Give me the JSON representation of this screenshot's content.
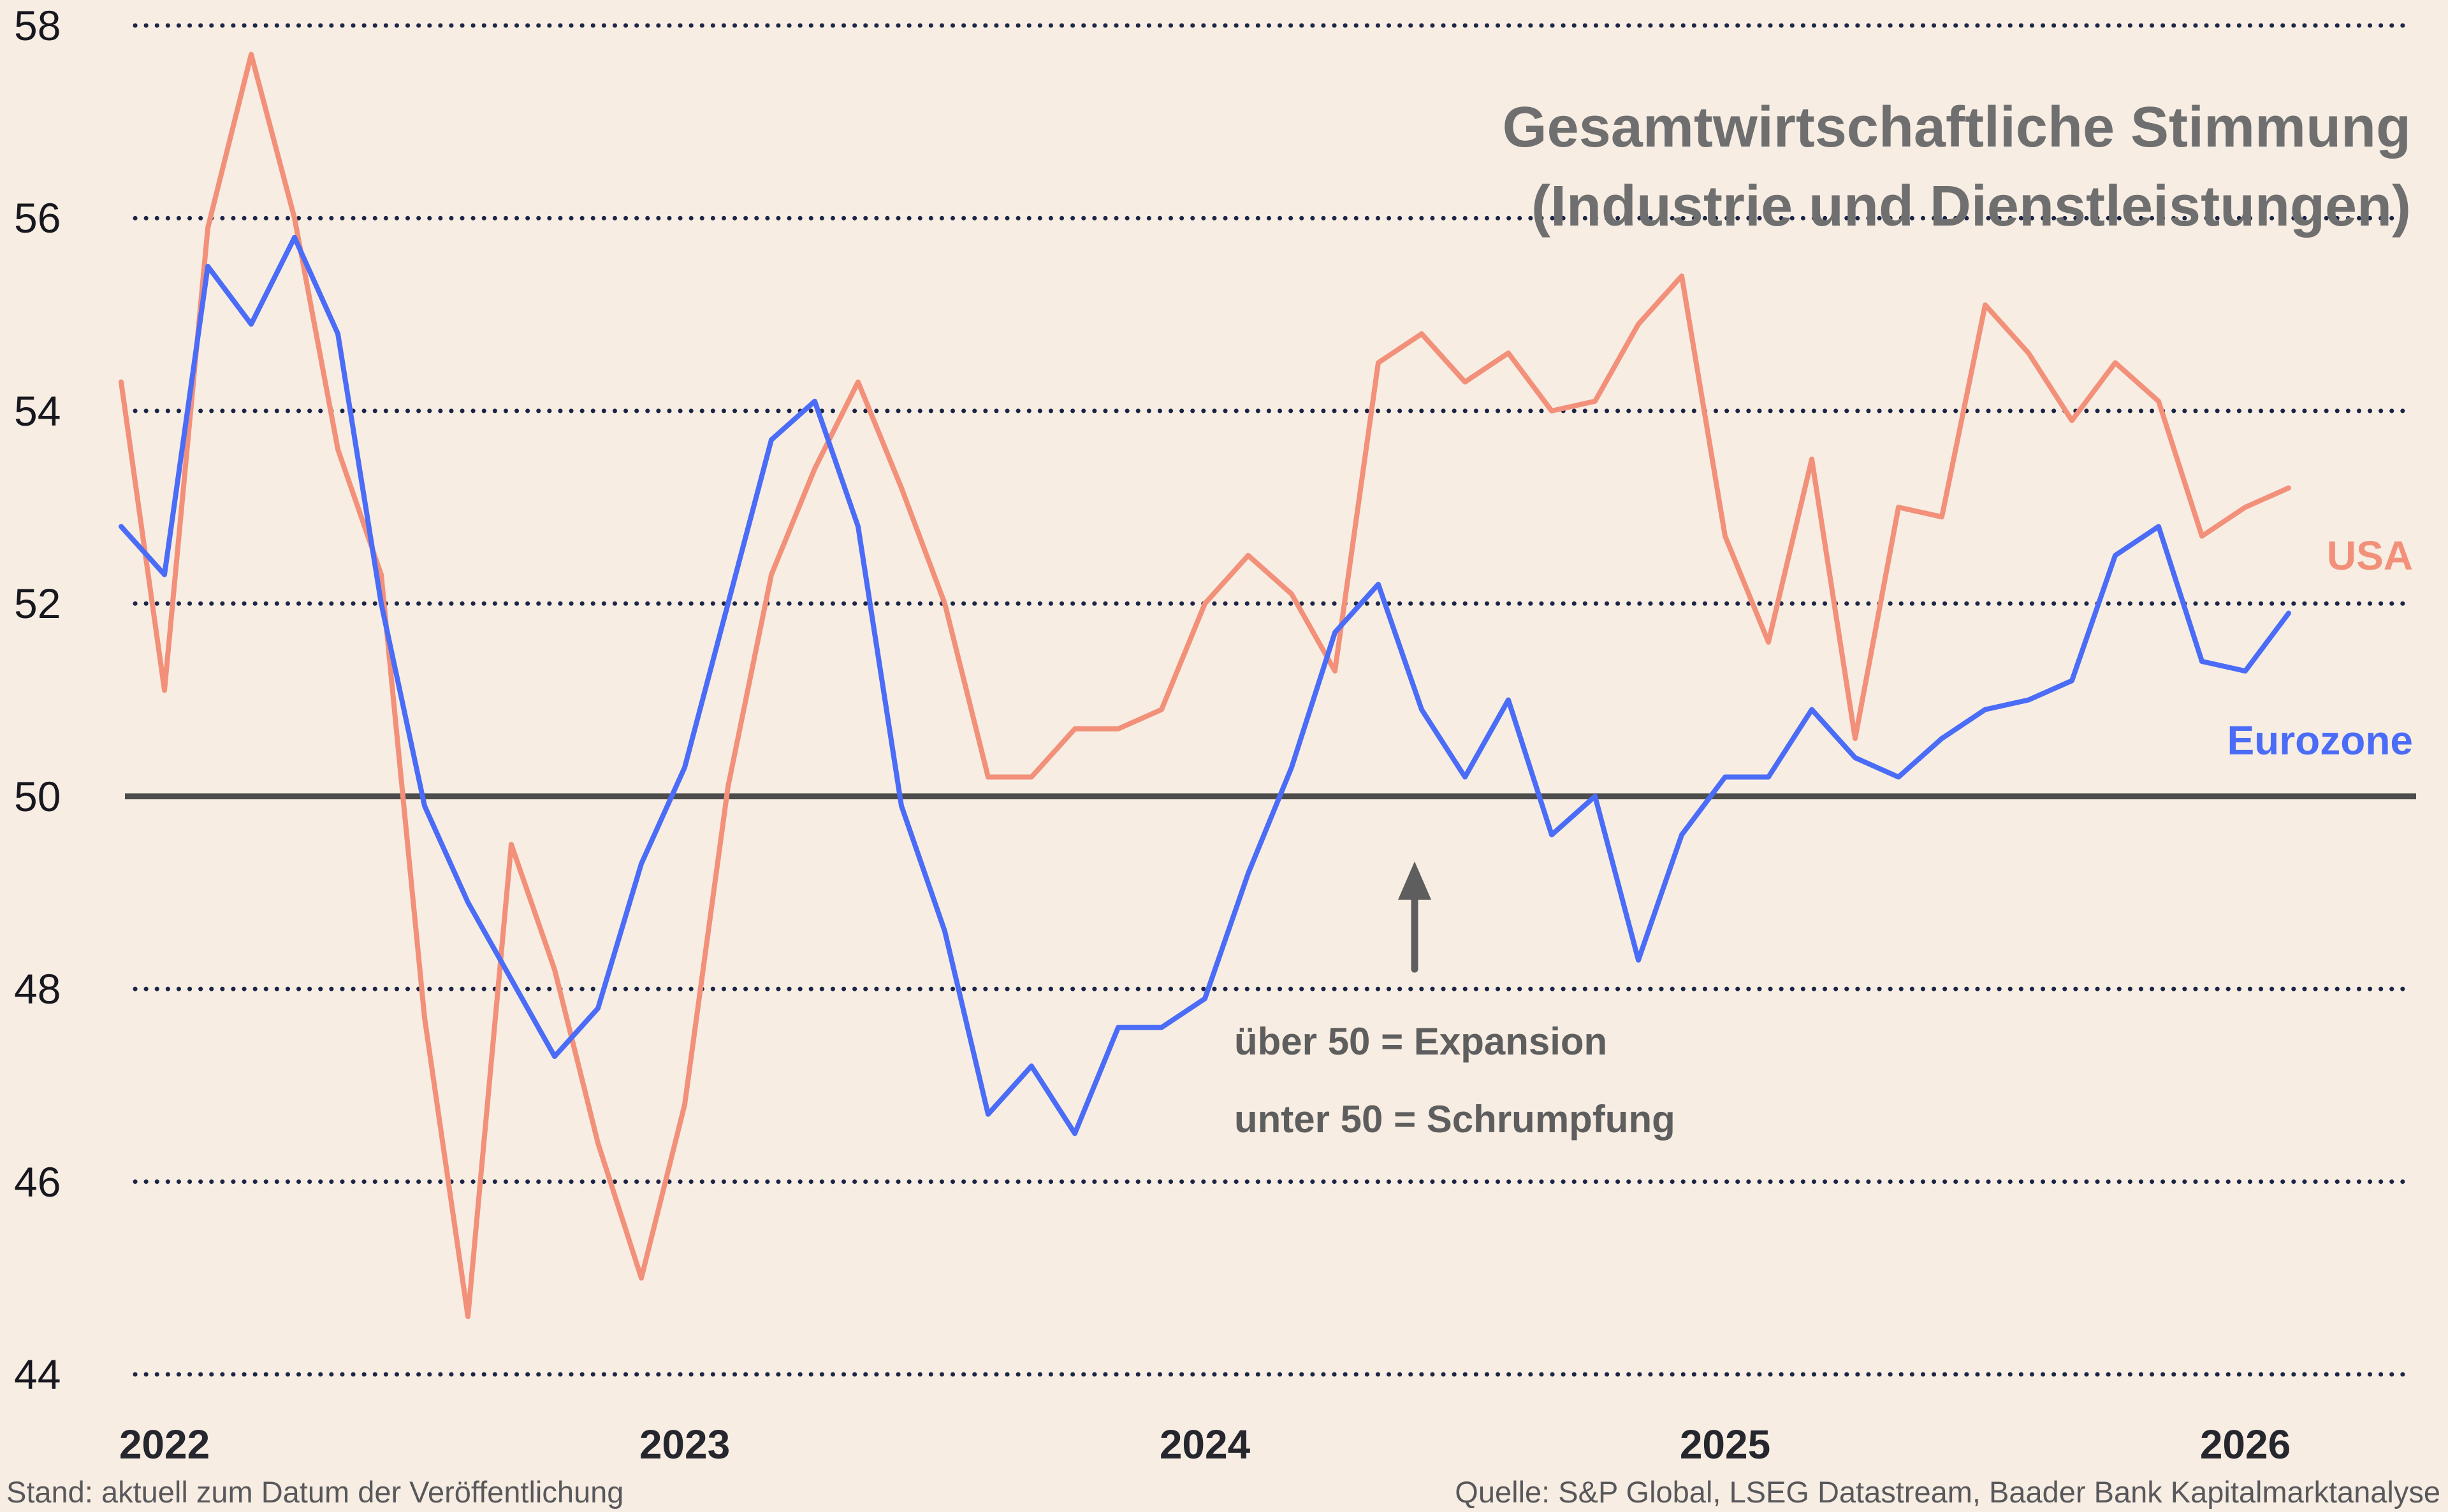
{
  "title": {
    "line1": "Gesamtwirtschaftliche Stimmung",
    "line2": "(Industrie und Dienstleistungen)"
  },
  "series_labels": {
    "usa": "USA",
    "eurozone": "Eurozone"
  },
  "annotation": {
    "line1": "über 50 = Expansion",
    "line2": "unter 50 = Schrumpfung"
  },
  "footer": {
    "left": "Stand: aktuell zum Datum der Veröffentlichung",
    "right": "Quelle: S&P Global, LSEG Datastream, Baader Bank Kapitalmarktanalyse"
  },
  "colors": {
    "background": "#f7ede2",
    "usa": "#f2907a",
    "eurozone": "#4a6cf7",
    "grid": "#1b2547",
    "baseline": "#4d4d4d",
    "arrow": "#5e5e5e"
  },
  "chart_data": {
    "type": "line",
    "title": "Gesamtwirtschaftliche Stimmung (Industrie und Dienstleistungen)",
    "xlabel": "",
    "ylabel": "",
    "ylim": [
      43.8,
      58.2
    ],
    "grid": "dotted horizontal",
    "baseline": 50,
    "yticks": [
      58,
      56,
      54,
      52,
      50,
      48,
      46,
      44
    ],
    "xticks": [
      "2022",
      "2023",
      "2024",
      "2025",
      "2026"
    ],
    "x": [
      "2021-12",
      "2022-01",
      "2022-02",
      "2022-03",
      "2022-04",
      "2022-05",
      "2022-06",
      "2022-07",
      "2022-08",
      "2022-09",
      "2022-10",
      "2022-11",
      "2022-12",
      "2023-01",
      "2023-02",
      "2023-03",
      "2023-04",
      "2023-05",
      "2023-06",
      "2023-07",
      "2023-08",
      "2023-09",
      "2023-10",
      "2023-11",
      "2023-12",
      "2024-01",
      "2024-02",
      "2024-03",
      "2024-04",
      "2024-05",
      "2024-06",
      "2024-07",
      "2024-08",
      "2024-09",
      "2024-10",
      "2024-11",
      "2024-12",
      "2025-01",
      "2025-02",
      "2025-03",
      "2025-04",
      "2025-05",
      "2025-06",
      "2025-07",
      "2025-08",
      "2025-09",
      "2025-10",
      "2025-11",
      "2025-12",
      "2026-01",
      "2026-02"
    ],
    "series": [
      {
        "name": "USA",
        "key": "usa",
        "values": [
          54.3,
          51.1,
          55.9,
          57.7,
          56.0,
          53.6,
          52.3,
          47.7,
          44.6,
          49.5,
          48.2,
          46.4,
          45.0,
          46.8,
          50.1,
          52.3,
          53.4,
          54.3,
          53.2,
          52.0,
          50.2,
          50.2,
          50.7,
          50.7,
          50.9,
          52.0,
          52.5,
          52.1,
          51.3,
          54.5,
          54.8,
          54.3,
          54.6,
          54.0,
          54.1,
          54.9,
          55.4,
          52.7,
          51.6,
          53.5,
          50.6,
          53.0,
          52.9,
          55.1,
          54.6,
          53.9,
          54.5,
          54.1,
          52.7,
          53.0,
          53.2
        ]
      },
      {
        "name": "Eurozone",
        "key": "eurozone",
        "values": [
          52.8,
          52.3,
          55.5,
          54.9,
          55.8,
          54.8,
          52.0,
          49.9,
          48.9,
          48.1,
          47.3,
          47.8,
          49.3,
          50.3,
          52.0,
          53.7,
          54.1,
          52.8,
          49.9,
          48.6,
          46.7,
          47.2,
          46.5,
          47.6,
          47.6,
          47.9,
          49.2,
          50.3,
          51.7,
          52.2,
          50.9,
          50.2,
          51.0,
          49.6,
          50.0,
          48.3,
          49.6,
          50.2,
          50.2,
          50.9,
          50.4,
          50.2,
          50.6,
          50.9,
          51.0,
          51.2,
          52.5,
          52.8,
          51.4,
          51.3,
          51.9
        ]
      }
    ],
    "legend_position": "inline-right"
  }
}
